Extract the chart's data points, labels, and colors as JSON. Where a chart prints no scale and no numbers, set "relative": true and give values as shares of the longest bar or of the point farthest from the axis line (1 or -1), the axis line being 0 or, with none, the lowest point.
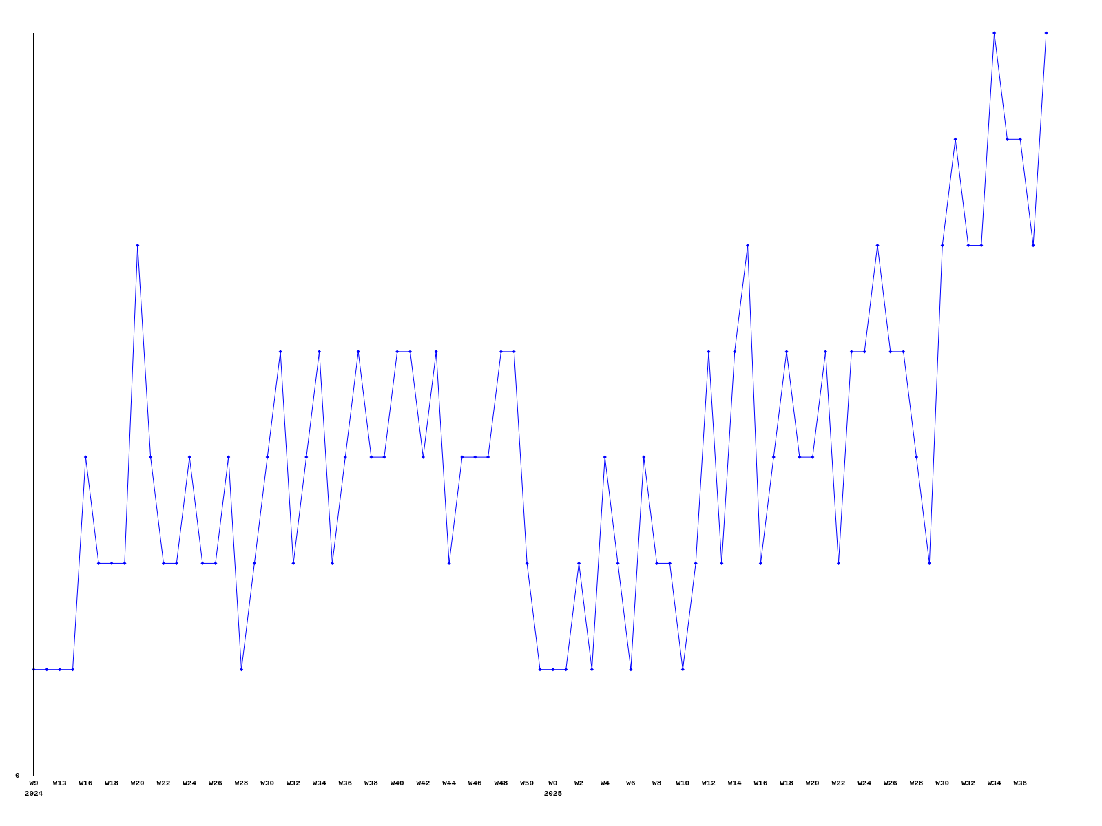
{
  "chart_data": {
    "type": "line",
    "relative": true,
    "color": "#0000ff",
    "marker": "diamond",
    "line_style": "solid",
    "annotations": [
      "0"
    ],
    "categories": [
      "W9\n2024",
      null,
      "W13",
      null,
      "W16",
      null,
      "W18",
      null,
      "W20",
      null,
      "W22",
      null,
      "W24",
      null,
      "W26",
      null,
      "W28",
      null,
      "W30",
      null,
      "W32",
      null,
      "W34",
      null,
      "W36",
      null,
      "W38",
      null,
      "W40",
      null,
      "W42",
      null,
      "W44",
      null,
      "W46",
      null,
      "W48",
      null,
      "W50",
      null,
      "W0\n2025",
      null,
      "W2",
      null,
      "W4",
      null,
      "W6",
      null,
      "W8",
      null,
      "W10",
      null,
      "W12",
      null,
      "W14",
      null,
      "W16",
      null,
      "W18",
      null,
      "W20",
      null,
      "W22",
      null,
      "W24",
      null,
      "W26",
      null,
      "W28",
      null,
      "W30",
      null,
      "W32",
      null,
      "W34",
      null,
      "W36",
      null,
      null
    ],
    "values": [
      0.143,
      0.143,
      0.143,
      0.143,
      0.429,
      0.286,
      0.286,
      0.286,
      0.714,
      0.429,
      0.286,
      0.286,
      0.429,
      0.286,
      0.286,
      0.429,
      0.143,
      0.286,
      0.429,
      0.571,
      0.286,
      0.429,
      0.571,
      0.286,
      0.429,
      0.571,
      0.429,
      0.429,
      0.571,
      0.571,
      0.429,
      0.571,
      0.286,
      0.429,
      0.429,
      0.429,
      0.571,
      0.571,
      0.286,
      0.143,
      0.143,
      0.143,
      0.286,
      0.143,
      0.429,
      0.286,
      0.143,
      0.429,
      0.286,
      0.286,
      0.143,
      0.286,
      0.571,
      0.286,
      0.571,
      0.714,
      0.286,
      0.429,
      0.571,
      0.429,
      0.429,
      0.571,
      0.286,
      0.571,
      0.571,
      0.714,
      0.571,
      0.571,
      0.429,
      0.286,
      0.714,
      0.857,
      0.714,
      0.714,
      1,
      0.857,
      0.857,
      0.714,
      1
    ]
  }
}
